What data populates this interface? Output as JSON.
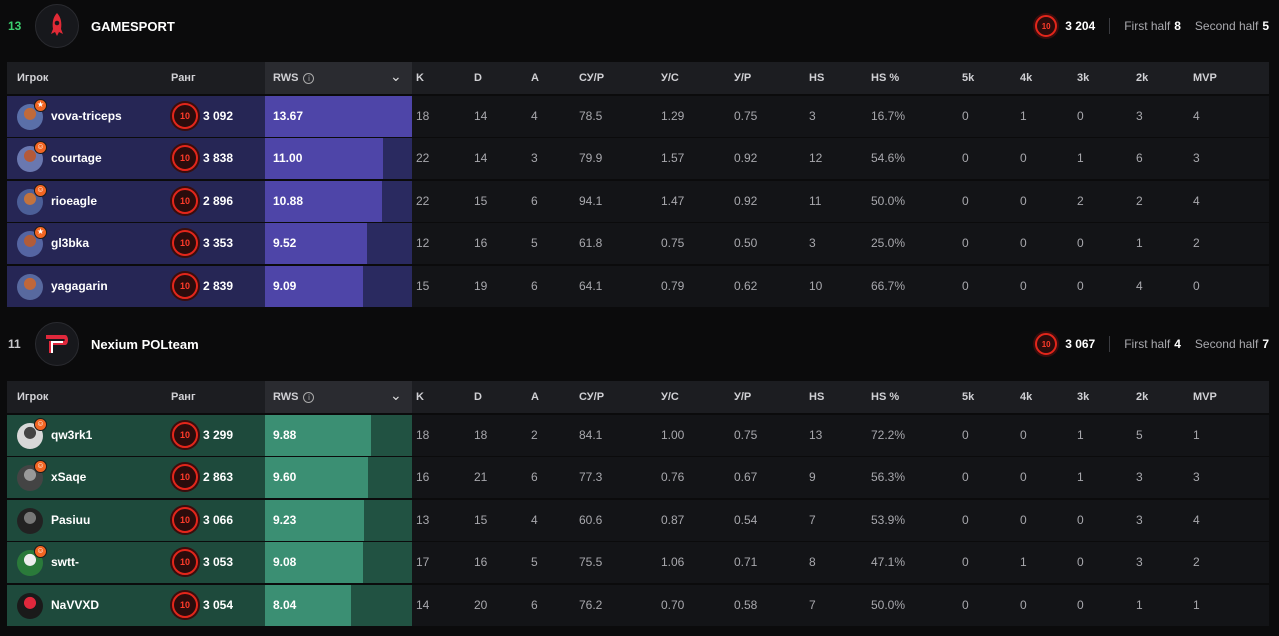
{
  "headers": {
    "player": "Игрок",
    "rank": "Ранг",
    "rws": "RWS",
    "k": "K",
    "d": "D",
    "a": "A",
    "sur": "СУ/Р",
    "ys": "У/С",
    "yr": "У/Р",
    "hs": "HS",
    "hsp": "HS %",
    "k5": "5k",
    "k4": "4k",
    "k3": "3k",
    "k2": "2k",
    "mvp": "MVP"
  },
  "level_label": "10",
  "colors": {
    "accent_red": "#e2261b",
    "team1_fill": "#4e45a8",
    "team2_fill": "#3b8f73",
    "score_win": "#3ccf6e"
  },
  "teams": [
    {
      "score": "13",
      "name": "GAMESPORT",
      "elo": "3 204",
      "first_half_label": "First half",
      "first_half": "8",
      "second_half_label": "Second half",
      "second_half": "5",
      "players": [
        {
          "name": "vova-triceps",
          "elo": "3 092",
          "rws": "13.67",
          "rws_pct": 1.0,
          "k": "18",
          "d": "14",
          "a": "4",
          "sur": "78.5",
          "ys": "1.29",
          "yr": "0.75",
          "hs": "3",
          "hsp": "16.7%",
          "k5": "0",
          "k4": "1",
          "k3": "0",
          "k2": "3",
          "mvp": "4",
          "badge": "star"
        },
        {
          "name": "courtage",
          "elo": "3 838",
          "rws": "11.00",
          "rws_pct": 0.805,
          "k": "22",
          "d": "14",
          "a": "3",
          "sur": "79.9",
          "ys": "1.57",
          "yr": "0.92",
          "hs": "12",
          "hsp": "54.6%",
          "k5": "0",
          "k4": "0",
          "k3": "1",
          "k2": "6",
          "mvp": "3",
          "badge": "user"
        },
        {
          "name": "rioeagle",
          "elo": "2 896",
          "rws": "10.88",
          "rws_pct": 0.796,
          "k": "22",
          "d": "15",
          "a": "6",
          "sur": "94.1",
          "ys": "1.47",
          "yr": "0.92",
          "hs": "11",
          "hsp": "50.0%",
          "k5": "0",
          "k4": "0",
          "k3": "2",
          "k2": "2",
          "mvp": "4",
          "badge": "user"
        },
        {
          "name": "gl3bka",
          "elo": "3 353",
          "rws": "9.52",
          "rws_pct": 0.696,
          "k": "12",
          "d": "16",
          "a": "5",
          "sur": "61.8",
          "ys": "0.75",
          "yr": "0.50",
          "hs": "3",
          "hsp": "25.0%",
          "k5": "0",
          "k4": "0",
          "k3": "0",
          "k2": "1",
          "mvp": "2",
          "badge": "star"
        },
        {
          "name": "yagagarin",
          "elo": "2 839",
          "rws": "9.09",
          "rws_pct": 0.665,
          "k": "15",
          "d": "19",
          "a": "6",
          "sur": "64.1",
          "ys": "0.79",
          "yr": "0.62",
          "hs": "10",
          "hsp": "66.7%",
          "k5": "0",
          "k4": "0",
          "k3": "0",
          "k2": "4",
          "mvp": "0",
          "badge": ""
        }
      ]
    },
    {
      "score": "11",
      "name": "Nexium POLteam",
      "elo": "3 067",
      "first_half_label": "First half",
      "first_half": "4",
      "second_half_label": "Second half",
      "second_half": "7",
      "players": [
        {
          "name": "qw3rk1",
          "elo": "3 299",
          "rws": "9.88",
          "rws_pct": 0.722,
          "k": "18",
          "d": "18",
          "a": "2",
          "sur": "84.1",
          "ys": "1.00",
          "yr": "0.75",
          "hs": "13",
          "hsp": "72.2%",
          "k5": "0",
          "k4": "0",
          "k3": "1",
          "k2": "5",
          "mvp": "1",
          "badge": "user"
        },
        {
          "name": "xSaqe",
          "elo": "2 863",
          "rws": "9.60",
          "rws_pct": 0.702,
          "k": "16",
          "d": "21",
          "a": "6",
          "sur": "77.3",
          "ys": "0.76",
          "yr": "0.67",
          "hs": "9",
          "hsp": "56.3%",
          "k5": "0",
          "k4": "0",
          "k3": "1",
          "k2": "3",
          "mvp": "3",
          "badge": "user"
        },
        {
          "name": "Pasiuu",
          "elo": "3 066",
          "rws": "9.23",
          "rws_pct": 0.675,
          "k": "13",
          "d": "15",
          "a": "4",
          "sur": "60.6",
          "ys": "0.87",
          "yr": "0.54",
          "hs": "7",
          "hsp": "53.9%",
          "k5": "0",
          "k4": "0",
          "k3": "0",
          "k2": "3",
          "mvp": "4",
          "badge": ""
        },
        {
          "name": "swtt-",
          "elo": "3 053",
          "rws": "9.08",
          "rws_pct": 0.664,
          "k": "17",
          "d": "16",
          "a": "5",
          "sur": "75.5",
          "ys": "1.06",
          "yr": "0.71",
          "hs": "8",
          "hsp": "47.1%",
          "k5": "0",
          "k4": "1",
          "k3": "0",
          "k2": "3",
          "mvp": "2",
          "badge": "user"
        },
        {
          "name": "NaVVXD",
          "elo": "3 054",
          "rws": "8.04",
          "rws_pct": 0.588,
          "k": "14",
          "d": "20",
          "a": "6",
          "sur": "76.2",
          "ys": "0.70",
          "yr": "0.58",
          "hs": "7",
          "hsp": "50.0%",
          "k5": "0",
          "k4": "0",
          "k3": "0",
          "k2": "1",
          "mvp": "1",
          "badge": ""
        }
      ]
    }
  ]
}
